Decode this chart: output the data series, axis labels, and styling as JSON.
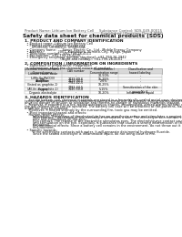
{
  "bg_color": "#ffffff",
  "header_left": "Product Name: Lithium Ion Battery Cell",
  "header_right_line1": "Substance Control: SDS-049-00015",
  "header_right_line2": "Established / Revision: Dec.7.2010",
  "title": "Safety data sheet for chemical products (SDS)",
  "section1_title": "1. PRODUCT AND COMPANY IDENTIFICATION",
  "section1_lines": [
    "  • Product name: Lithium Ion Battery Cell",
    "  • Product code: Cylindrical-type cell",
    "       UR18650J, UR18650L, UR18650A",
    "  • Company name:      Sanyo Electric Co., Ltd., Mobile Energy Company",
    "  • Address:              2001  Kamiakura, Sumoto-City, Hyogo, Japan",
    "  • Telephone number:  +81-799-26-4111",
    "  • Fax number:  +81-799-26-4120",
    "  • Emergency telephone number (daytime): +81-799-26-2942",
    "                                   (Night and holiday): +81-799-26-4101"
  ],
  "section2_title": "2. COMPOSITION / INFORMATION ON INGREDIENTS",
  "section2_sub1": "  • Substance or preparation: Preparation",
  "section2_sub2": "  • Information about the chemical nature of product:",
  "table_col_headers": [
    "Chemical chemical name /\nGeneral name",
    "CAS number",
    "Concentration /\nConcentration range",
    "Classification and\nhazard labeling"
  ],
  "table_rows": [
    [
      "Lithium cobalt oxide\n(LiMn-Co-PbCO3)",
      "-",
      "30-50%",
      "-"
    ],
    [
      "Iron",
      "7439-89-6",
      "15-25%",
      "-"
    ],
    [
      "Aluminum",
      "7429-90-5",
      "2-6%",
      "-"
    ],
    [
      "Graphite\n(listed as graphite-1)\n(All-fin as graphite-1)",
      "7782-42-5\n7782-44-5",
      "10-25%",
      "-"
    ],
    [
      "Copper",
      "7440-50-8",
      "5-15%",
      "Sensitization of the skin\ngroup No.2"
    ],
    [
      "Organic electrolyte",
      "-",
      "10-20%",
      "Inflammable liquid"
    ]
  ],
  "section3_title": "3. HAZARDS IDENTIFICATION",
  "section3_para1": "    For the battery cell, chemical materials are stored in a hermetically-sealed metal case, designed to withstand\ntemperature and pressure-stress-conditions during normal use. As a result, during normal use, there is no\nphysical danger of ignition or aspiration and there is no danger of hazardous materials leakage.",
  "section3_para2": "    However, if exposed to a fire, added mechanical shocks, decomposed, armed alarms without any misuse,\nthe gas release valve can be operated. The battery cell case will be breached at fire-patterns, hazardous\nmaterials may be released.",
  "section3_para3": "    Moreover, if heated strongly by the surrounding fire, toxic gas may be emitted.",
  "section3_bullet1_title": "  • Most important hazard and effects:",
  "section3_human": "    Human health effects:",
  "section3_inhalation": "        Inhalation: The release of the electrolyte has an anesthesia action and stimulates a respiratory tract.",
  "section3_skin": "        Skin contact: The release of the electrolyte stimulates a skin. The electrolyte skin contact causes a\n        sore and stimulation on the skin.",
  "section3_eye": "        Eye contact: The release of the electrolyte stimulates eyes. The electrolyte eye contact causes a sore\n        and stimulation on the eye. Especially, a substance that causes a strong inflammation of the eyes is\n        contained.",
  "section3_env": "        Environmental effects: Since a battery cell remains in the environment, do not throw out it into the\n        environment.",
  "section3_bullet2_title": "  • Specific hazards:",
  "section3_specific1": "        If the electrolyte contacts with water, it will generate detrimental hydrogen fluoride.",
  "section3_specific2": "        Since the sealed electrolyte is inflammable liquid, do not bring close to fire."
}
